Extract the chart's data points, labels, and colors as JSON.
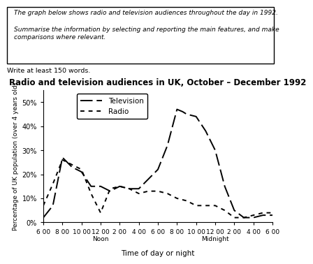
{
  "title": "Radio and television audiences in UK, October – December 1992",
  "xlabel": "Time of day or night",
  "ylabel": "Percentage of UK population (over 4 years old)",
  "write_note": "Write at least 150 words.",
  "box_text": "The graph below shows radio and television audiences throughout the day in 1992.\n\nSummarise the information by selecting and reporting the main features, and make\ncomparisons where relevant.",
  "x_tick_labels": [
    "6 00",
    "8 00",
    "10 00",
    "12 00",
    "2 00",
    "4 00",
    "6 00",
    "8 00",
    "10 00",
    "12 00",
    "2 00",
    "4 00",
    "6 00"
  ],
  "ylim": [
    0,
    55
  ],
  "tv_x": [
    0,
    0.5,
    1,
    1.5,
    2,
    2.5,
    3,
    3.5,
    4,
    4.5,
    5,
    5.5,
    6,
    6.5,
    7,
    7.3,
    7.5,
    8,
    8.5,
    9,
    9.5,
    10,
    10.5,
    11,
    11.5,
    12
  ],
  "tv_y": [
    2,
    7,
    27,
    23,
    21,
    15,
    15,
    13,
    15,
    14,
    14,
    18,
    22,
    32,
    47,
    46,
    45,
    44,
    38,
    30,
    15,
    5,
    2,
    2,
    3,
    3
  ],
  "radio_x": [
    0,
    0.5,
    1,
    1.5,
    2,
    2.5,
    3,
    3.5,
    4,
    4.5,
    5,
    5.5,
    6,
    6.5,
    7,
    7.5,
    8,
    8.5,
    9,
    9.5,
    10,
    10.5,
    11,
    11.5,
    12
  ],
  "radio_y": [
    7,
    16,
    26,
    24,
    22,
    12,
    4,
    14,
    15,
    14,
    12,
    13,
    13,
    12,
    10,
    9,
    7,
    7,
    7,
    5,
    2,
    2,
    3,
    4,
    4
  ],
  "tv_color": "#000000",
  "radio_color": "#000000",
  "legend_tv": "Television",
  "legend_radio": "Radio",
  "fig_bg": "#ffffff"
}
